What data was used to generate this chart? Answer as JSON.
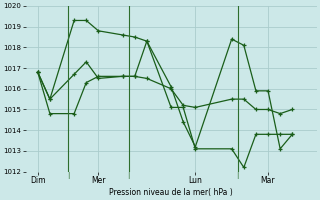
{
  "background_color": "#cce8e8",
  "grid_color": "#aacccc",
  "line_color": "#1a5e1a",
  "ylabel": "Pression niveau de la mer( hPa )",
  "ylim": [
    1012,
    1020
  ],
  "yticks": [
    1012,
    1013,
    1014,
    1015,
    1016,
    1017,
    1018,
    1019,
    1020
  ],
  "xtick_labels": [
    "Dim",
    "Mer",
    "Lun",
    "Mar"
  ],
  "xtick_positions": [
    1,
    6,
    14,
    20
  ],
  "vline_positions": [
    3.5,
    8.5,
    17.5
  ],
  "xlim": [
    0,
    24
  ],
  "series1": {
    "x": [
      1,
      2,
      4,
      5,
      6,
      8,
      9,
      10,
      12,
      13,
      14,
      17,
      18,
      19,
      20,
      21,
      22
    ],
    "y": [
      1016.8,
      1015.5,
      1019.3,
      1019.3,
      1018.8,
      1018.6,
      1018.5,
      1018.3,
      1016.1,
      1014.4,
      1013.2,
      1018.4,
      1018.1,
      1015.9,
      1015.9,
      1013.1,
      1013.8
    ]
  },
  "series2": {
    "x": [
      1,
      2,
      4,
      5,
      6,
      8,
      9,
      10,
      12,
      13,
      14,
      17,
      18,
      19,
      20,
      21,
      22
    ],
    "y": [
      1016.8,
      1015.5,
      1016.7,
      1017.3,
      1016.5,
      1016.6,
      1016.6,
      1016.5,
      1016.0,
      1015.2,
      1015.1,
      1015.5,
      1015.5,
      1015.0,
      1015.0,
      1014.8,
      1015.0
    ]
  },
  "series3": {
    "x": [
      1,
      2,
      4,
      5,
      6,
      8,
      9,
      10,
      12,
      13,
      14,
      17,
      18,
      19,
      20,
      21,
      22
    ],
    "y": [
      1016.8,
      1014.8,
      1014.8,
      1016.3,
      1016.6,
      1016.6,
      1016.6,
      1018.3,
      1015.1,
      1015.1,
      1013.1,
      1013.1,
      1012.2,
      1013.8,
      1013.8,
      1013.8,
      1013.8
    ]
  }
}
